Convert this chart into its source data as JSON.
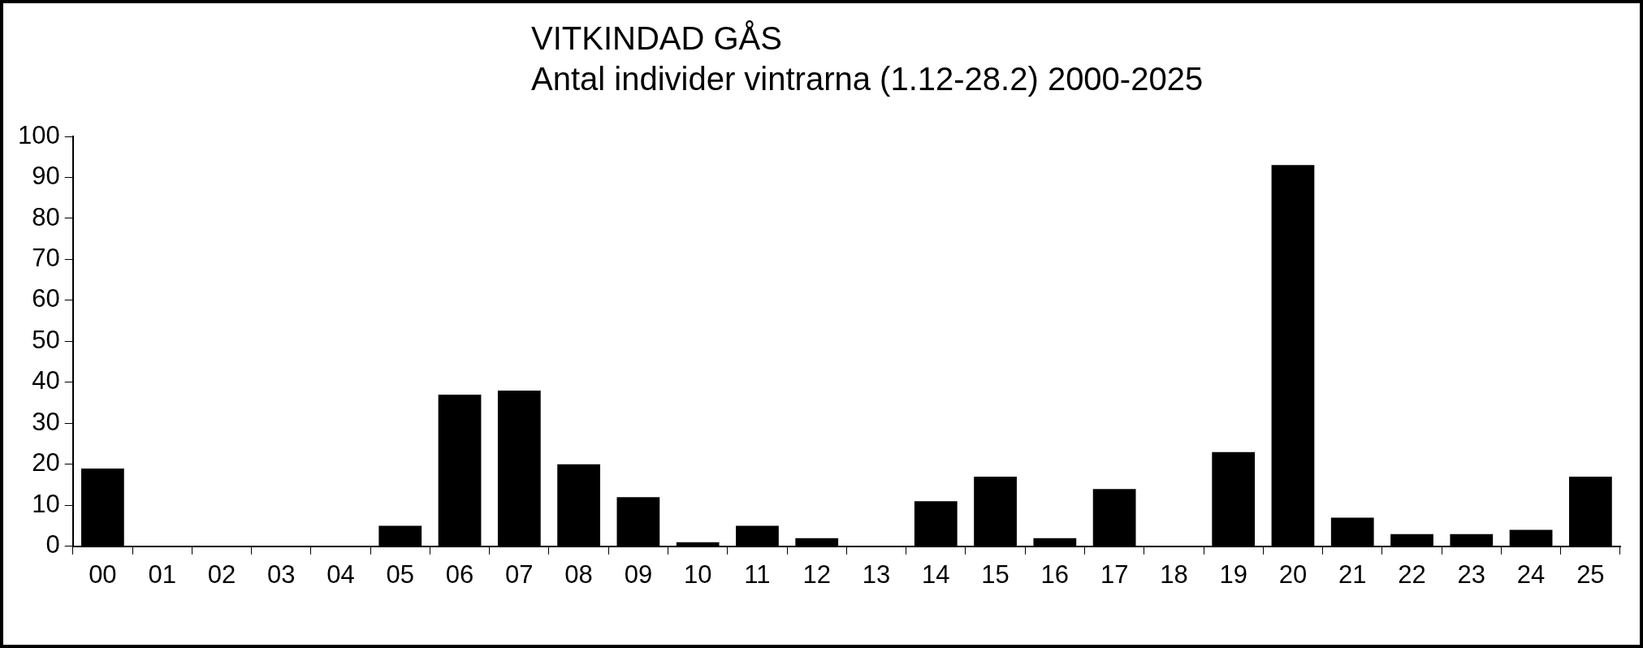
{
  "chart_data": {
    "type": "bar",
    "title": "VITKINDAD GÅS",
    "subtitle": "Antal individer vintrarna (1.12-28.2) 2000-2025",
    "categories": [
      "00",
      "01",
      "02",
      "03",
      "04",
      "05",
      "06",
      "07",
      "08",
      "09",
      "10",
      "11",
      "12",
      "13",
      "14",
      "15",
      "16",
      "17",
      "18",
      "19",
      "20",
      "21",
      "22",
      "23",
      "24",
      "25"
    ],
    "values": [
      19,
      0,
      0,
      0,
      0,
      5,
      37,
      38,
      20,
      12,
      1,
      5,
      2,
      0,
      11,
      17,
      2,
      14,
      0,
      23,
      93,
      7,
      3,
      3,
      4,
      17
    ],
    "color": "#000000",
    "ylim": [
      0,
      100
    ],
    "yticks": [
      0,
      10,
      20,
      30,
      40,
      50,
      60,
      70,
      80,
      90,
      100
    ],
    "grid": false
  }
}
